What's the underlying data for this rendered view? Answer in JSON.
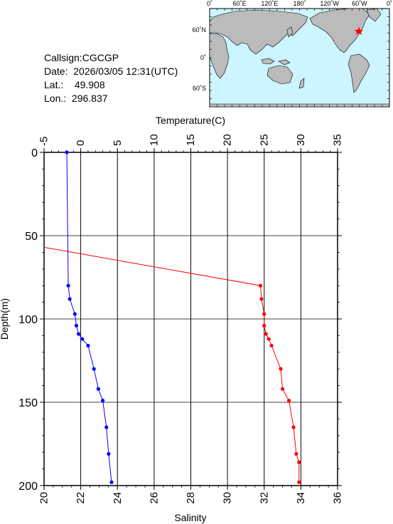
{
  "info": {
    "callsign_label": "Callsign:",
    "callsign": "CGCGP",
    "date_label": "Date:",
    "date": "2026/03/05 12:31(UTC)",
    "lat_label": "Lat.:",
    "lat": "49.908",
    "lon_label": "Lon.:",
    "lon": "296.837"
  },
  "map": {
    "top_ticks": [
      "0˚",
      "60˚E",
      "120˚E",
      "180˚",
      "120˚W",
      "60˚W",
      "0˚"
    ],
    "left_ticks": [
      "60˚N",
      "0˚",
      "60˚S"
    ],
    "ocean_color": "#ccf5ff",
    "land_color": "#bbbbbb",
    "marker_color": "#ff0000"
  },
  "chart_data": {
    "type": "line",
    "y_axis": {
      "label": "Depth(m)",
      "range": [
        0,
        200
      ],
      "ticks": [
        0,
        50,
        100,
        150,
        200
      ],
      "inverted": true
    },
    "x_top_axis": {
      "label": "Temperature(C)",
      "range": [
        -5,
        35
      ],
      "ticks": [
        -5,
        0,
        5,
        10,
        15,
        20,
        25,
        30,
        35
      ]
    },
    "x_bottom_axis": {
      "label": "Salinity",
      "range": [
        20,
        36
      ],
      "ticks": [
        20,
        22,
        24,
        26,
        28,
        30,
        32,
        34,
        36
      ]
    },
    "grid": true,
    "series": [
      {
        "axis": "top",
        "color": "#0000ff",
        "points": [
          {
            "depth": 0,
            "value": -1.9
          },
          {
            "depth": 80,
            "value": -1.7
          },
          {
            "depth": 88,
            "value": -1.5
          },
          {
            "depth": 97,
            "value": -0.8
          },
          {
            "depth": 104,
            "value": -0.6
          },
          {
            "depth": 109,
            "value": -0.3
          },
          {
            "depth": 112,
            "value": 0.2
          },
          {
            "depth": 116,
            "value": 1.0
          },
          {
            "depth": 130,
            "value": 1.8
          },
          {
            "depth": 142,
            "value": 2.4
          },
          {
            "depth": 149,
            "value": 3.0
          },
          {
            "depth": 165,
            "value": 3.5
          },
          {
            "depth": 181,
            "value": 3.8
          },
          {
            "depth": 198,
            "value": 4.2
          }
        ]
      },
      {
        "axis": "bottom",
        "color": "#ff0000",
        "points": [
          {
            "depth": 57,
            "value": 20.0
          },
          {
            "depth": 80,
            "value": 31.8
          },
          {
            "depth": 88,
            "value": 31.85
          },
          {
            "depth": 97,
            "value": 32.0
          },
          {
            "depth": 104,
            "value": 32.0
          },
          {
            "depth": 109,
            "value": 32.1
          },
          {
            "depth": 112,
            "value": 32.25
          },
          {
            "depth": 116,
            "value": 32.4
          },
          {
            "depth": 130,
            "value": 32.9
          },
          {
            "depth": 142,
            "value": 33.0
          },
          {
            "depth": 149,
            "value": 33.35
          },
          {
            "depth": 165,
            "value": 33.6
          },
          {
            "depth": 181,
            "value": 33.75
          },
          {
            "depth": 186,
            "value": 33.9
          },
          {
            "depth": 198,
            "value": 33.9
          }
        ]
      }
    ]
  }
}
